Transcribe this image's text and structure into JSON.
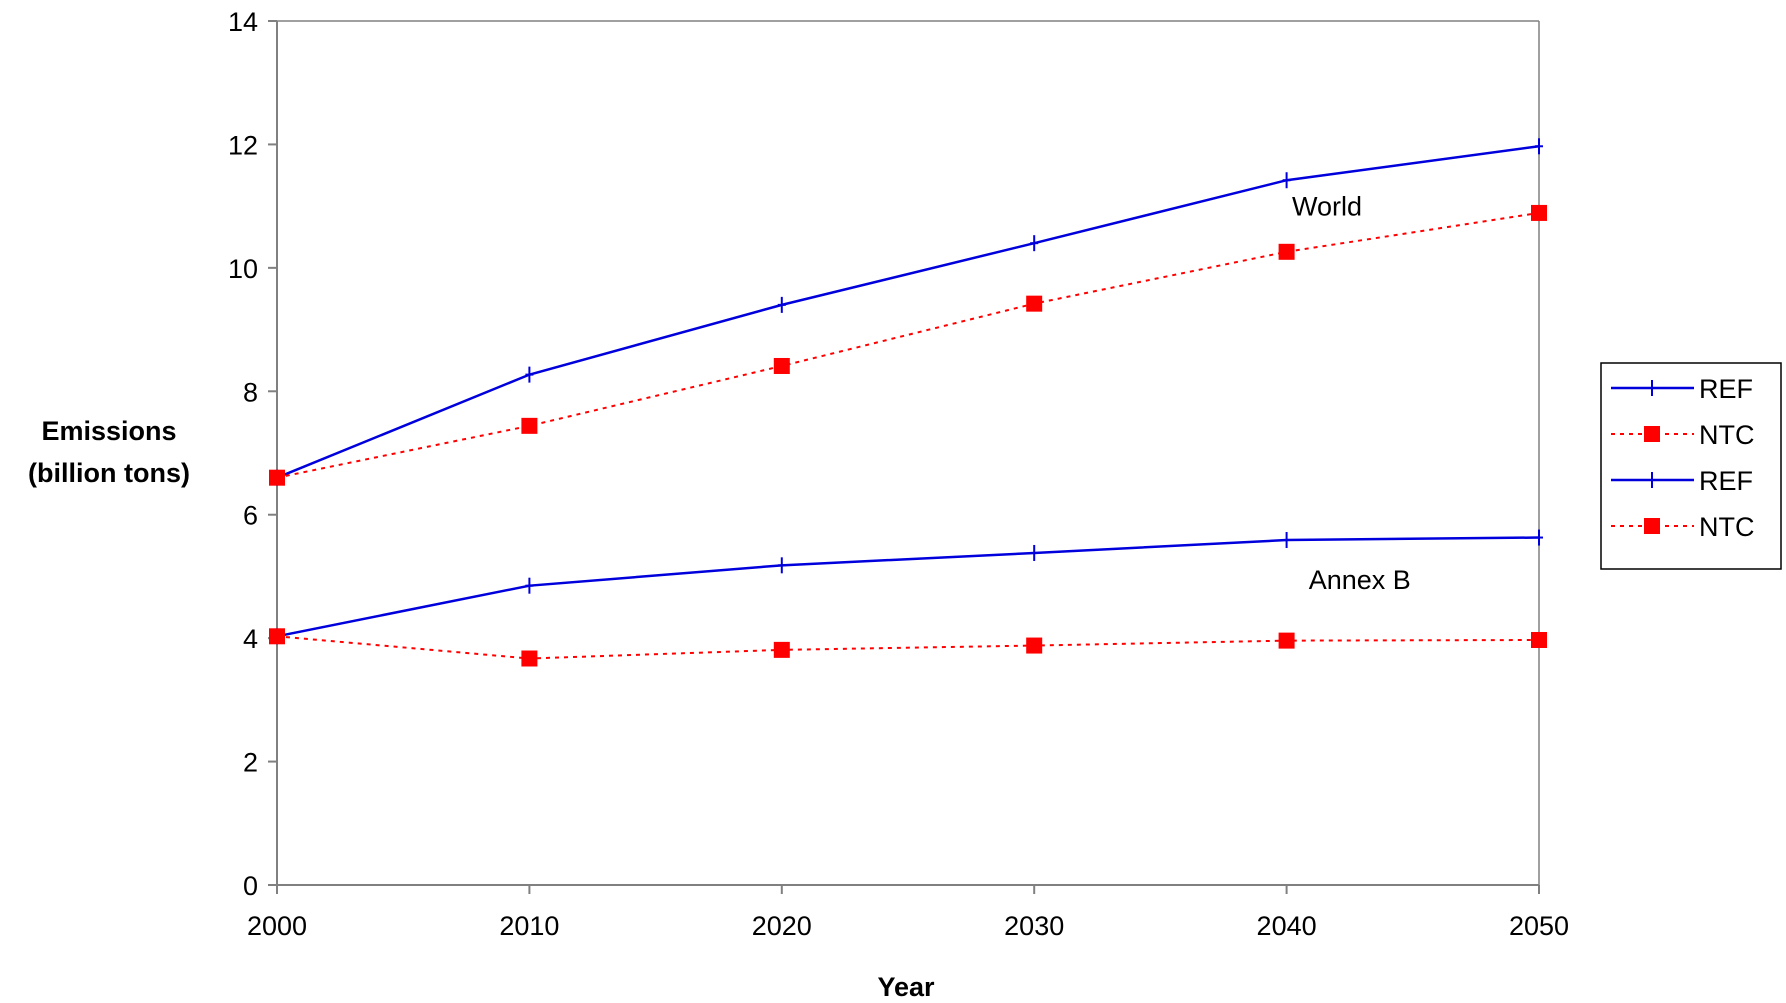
{
  "chart_data": {
    "type": "line",
    "title": "",
    "xlabel": "Year",
    "ylabel_lines": [
      "Emissions",
      "(billion tons)"
    ],
    "xlim": [
      2000,
      2050
    ],
    "ylim": [
      0,
      14
    ],
    "x_ticks": [
      "2000",
      "2010",
      "2020",
      "2030",
      "2040",
      "2050"
    ],
    "y_ticks": [
      "0",
      "2",
      "4",
      "6",
      "8",
      "10",
      "12",
      "14"
    ],
    "x": [
      2000,
      2010,
      2020,
      2030,
      2040,
      2050
    ],
    "grid": false,
    "legend_position": "right",
    "series": [
      {
        "name": "REF",
        "group": "World",
        "style": "solid",
        "marker": "plus",
        "color": "#0000dd",
        "values": [
          6.6,
          8.27,
          9.4,
          10.4,
          11.42,
          11.97
        ]
      },
      {
        "name": "NTC",
        "group": "World",
        "style": "dotted",
        "marker": "square",
        "color": "#ff0000",
        "values": [
          6.6,
          7.44,
          8.41,
          9.42,
          10.26,
          10.89
        ]
      },
      {
        "name": "REF",
        "group": "Annex B",
        "style": "solid",
        "marker": "plus",
        "color": "#0000dd",
        "values": [
          4.03,
          4.85,
          5.18,
          5.38,
          5.59,
          5.63
        ]
      },
      {
        "name": "NTC",
        "group": "Annex B",
        "style": "dotted",
        "marker": "square",
        "color": "#ff0000",
        "values": [
          4.03,
          3.67,
          3.81,
          3.88,
          3.96,
          3.97
        ]
      }
    ],
    "annotations": [
      {
        "text": "World",
        "x": 2041.6,
        "y": 10.85
      },
      {
        "text": "Annex B",
        "x": 2042.9,
        "y": 4.8
      }
    ]
  }
}
